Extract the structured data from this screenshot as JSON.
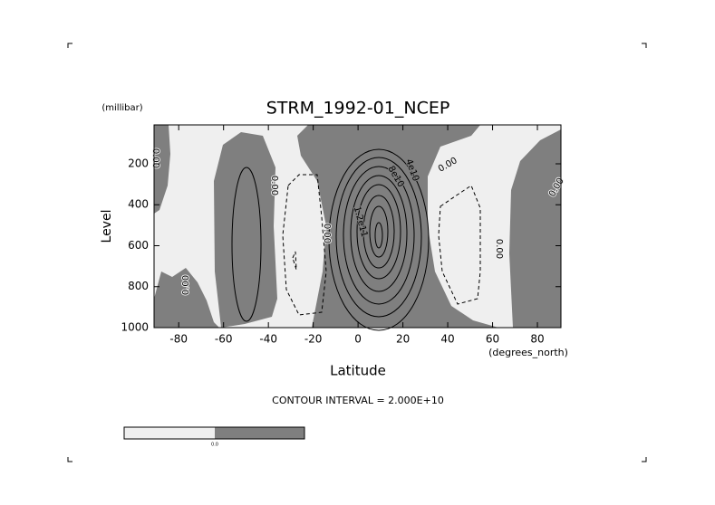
{
  "chart_data": {
    "type": "contour",
    "title": "STRM_1992-01_NCEP",
    "y_units": "(millibar)",
    "y_label": "Level",
    "x_label": "Latitude",
    "x_units": "(degrees_north)",
    "contour_interval": "CONTOUR INTERVAL = 2.000E+10",
    "xlim": [
      -91,
      90.5
    ],
    "xticks": [
      -80,
      -60,
      -40,
      -20,
      0,
      20,
      40,
      60,
      80
    ],
    "ylim": [
      1000,
      10
    ],
    "yticks": [
      200,
      400,
      600,
      800,
      1000
    ],
    "negative_color": "#efefef",
    "positive_color": "#7f7f7f",
    "contour_labels": [
      "0.00",
      "0.00",
      "0.00",
      "0.00",
      "1.2e11",
      "8e10",
      "4e10",
      "0.00",
      "0.00",
      "0.00"
    ],
    "colorbar_label": "0.0"
  }
}
